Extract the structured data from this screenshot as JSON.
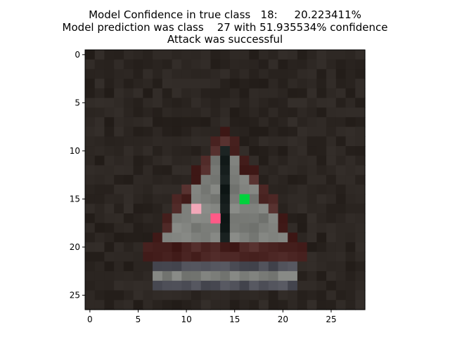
{
  "title": {
    "line1": "Model Confidence in true class   18:     20.223411%",
    "line2": "Model prediction was class    27 with 51.935534% confidence",
    "line3": "Attack was successful"
  },
  "axes": {
    "x_ticks": [
      "0",
      "5",
      "10",
      "15",
      "20",
      "25"
    ],
    "y_ticks": [
      "0",
      "5",
      "10",
      "15",
      "20",
      "25"
    ]
  },
  "image": {
    "grid_width": 29,
    "grid_height": 27,
    "background_color": "#2b2521",
    "sign_border_color": "#4a2422",
    "sign_face_color": "#7d7f7b",
    "symbol_color": "#0c1413",
    "perturbed_pixels": [
      {
        "col": 11,
        "row": 16,
        "color": "#f2a7b8"
      },
      {
        "col": 13,
        "row": 17,
        "color": "#ff5a87"
      },
      {
        "col": 16,
        "row": 15,
        "color": "#00d23c"
      }
    ]
  }
}
